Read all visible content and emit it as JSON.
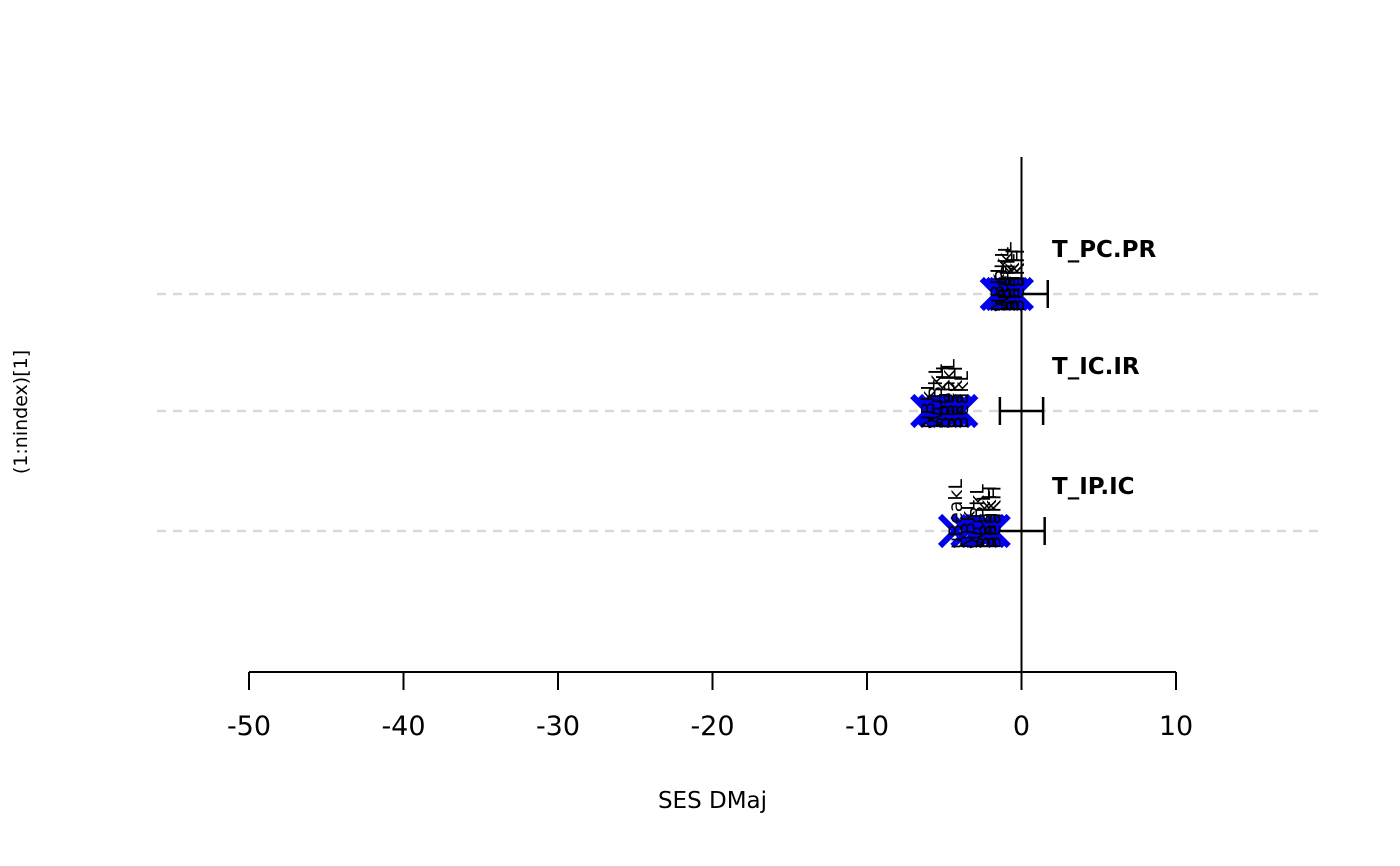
{
  "figure": {
    "background": "#ffffff",
    "x_axis_title": "SES DMaj",
    "y_axis_title": "(1:nindex)[1]"
  },
  "colors": {
    "site_marker_blue": "#0000EE",
    "observed_marker_red": "#FF0000",
    "null_interval_black": "#000000",
    "gridline_gray": "#D9D9D9",
    "axis_black": "#000000"
  },
  "chart_data": {
    "type": "scatter",
    "title": "",
    "xlabel": "SES DMaj",
    "ylabel": "(1:nindex)[1]",
    "xlim": [
      -50,
      10
    ],
    "xticks": [
      -50,
      -40,
      -30,
      -20,
      -10,
      0,
      10
    ],
    "grid": "horizontal-dashed",
    "legend_position": "none",
    "zero_reference_line_x": 0,
    "rows": [
      {
        "label": "T_PC.PR",
        "observed": -1.1,
        "null_low": -1.7,
        "null_center": 0,
        "null_high": 1.7,
        "sites": [
          {
            "code": "NBkL",
            "value": -1.6
          },
          {
            "code": "WuBkL",
            "value": -1.3
          },
          {
            "code": "uBeakL",
            "value": -1.1
          },
          {
            "code": "BeakL",
            "value": -0.9
          },
          {
            "code": "BogKH",
            "value": -0.6
          },
          {
            "code": "BeaKH",
            "value": -0.3
          }
        ]
      },
      {
        "label": "T_IC.IR",
        "observed": -4.8,
        "null_low": -1.4,
        "null_center": 0,
        "null_high": 1.4,
        "sites": [
          {
            "code": "NBkL",
            "value": -6.1
          },
          {
            "code": "WuBkL",
            "value": -5.6
          },
          {
            "code": "BogKH",
            "value": -5.1
          },
          {
            "code": "uBeakL",
            "value": -4.8
          },
          {
            "code": "BeaKH",
            "value": -4.3
          },
          {
            "code": "BeakL",
            "value": -3.9
          }
        ]
      },
      {
        "label": "T_IP.IC",
        "observed": -2.3,
        "null_low": -1.6,
        "null_center": 0,
        "null_high": 1.5,
        "sites": [
          {
            "code": "uBeakL",
            "value": -4.3
          },
          {
            "code": "NBkL",
            "value": -3.5
          },
          {
            "code": "WuBkL",
            "value": -2.9
          },
          {
            "code": "BeakL",
            "value": -2.5
          },
          {
            "code": "BogKH",
            "value": -2.1
          },
          {
            "code": "BeaKH",
            "value": -1.8
          }
        ]
      }
    ]
  }
}
